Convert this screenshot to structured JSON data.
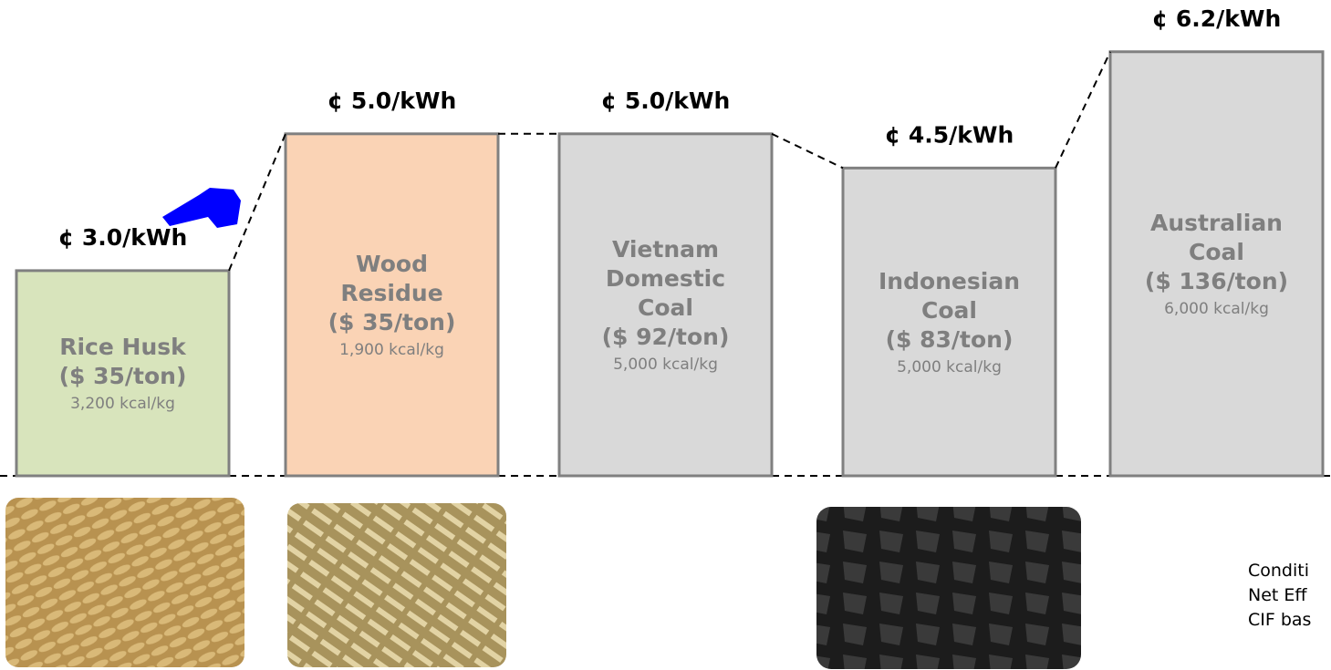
{
  "chart_data": {
    "type": "bar",
    "categories": [
      "Rice Husk",
      "Wood Residue",
      "Vietnam Domestic Coal",
      "Indonesian Coal",
      "Australian Coal"
    ],
    "prices": [
      "($ 35/ton)",
      "($ 35/ton)",
      "($ 92/ton)",
      "($ 83/ton)",
      "($ 136/ton)"
    ],
    "energy": [
      "3,200 kcal/kg",
      "1,900 kcal/kg",
      "5,000 kcal/kg",
      "5,000 kcal/kg",
      "6,000 kcal/kg"
    ],
    "values": [
      3.0,
      5.0,
      5.0,
      4.5,
      6.2
    ],
    "value_labels": [
      "¢ 3.0/kWh",
      "¢ 5.0/kWh",
      "¢ 5.0/kWh",
      "¢ 4.5/kWh",
      "¢ 6.2/kWh"
    ],
    "colors": [
      "#d8e4bc",
      "#fad3b5",
      "#d9d9d9",
      "#d9d9d9",
      "#d9d9d9"
    ],
    "ylim": [
      0,
      6.33
    ],
    "notes": [
      "Conditi",
      "Net Eff",
      "CIF bas"
    ]
  }
}
